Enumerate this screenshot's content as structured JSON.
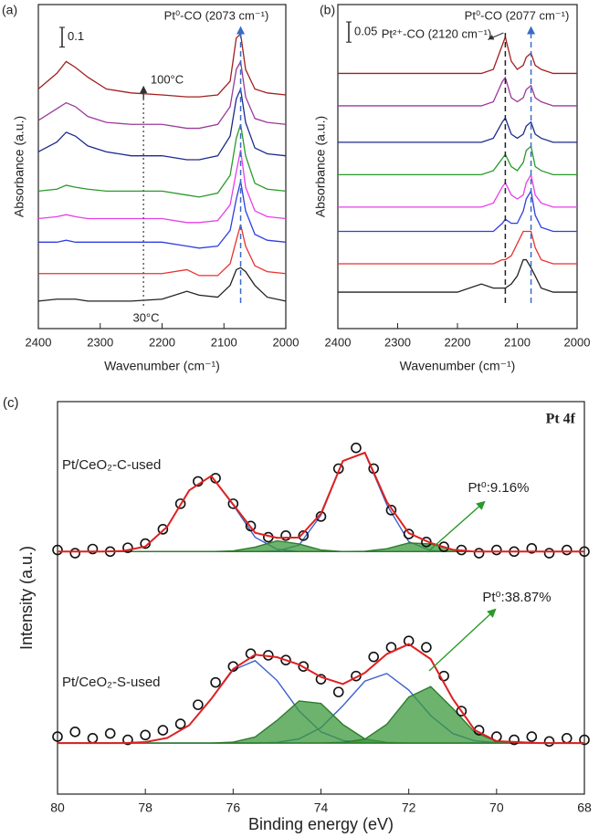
{
  "chart_data": [
    {
      "type": "line",
      "label": "(a)",
      "xlabel": "Wavenumber (cm⁻¹)",
      "ylabel": "Absorbance (a.u.)",
      "xlim": [
        2400,
        2000
      ],
      "xticks": [
        2400,
        2300,
        2200,
        2100,
        2000
      ],
      "ylim": [
        0,
        1.65
      ],
      "scale_bar": 0.1,
      "peak_lines": [
        {
          "x": 2073,
          "color": "#3a6bc4"
        }
      ],
      "dotted_line_x": 2230,
      "annotations": [
        {
          "text": "Pt⁰-CO (2073 cm⁻¹)",
          "color": "#3a6bc4"
        },
        {
          "text": "100°C",
          "color": "#222222"
        },
        {
          "text": "30°C",
          "color": "#222222"
        }
      ],
      "x": [
        2400,
        2370,
        2355,
        2340,
        2320,
        2290,
        2250,
        2200,
        2160,
        2140,
        2110,
        2090,
        2080,
        2073,
        2065,
        2050,
        2030,
        2000
      ],
      "series": [
        {
          "color": "#222222",
          "values": [
            0.14,
            0.15,
            0.15,
            0.15,
            0.14,
            0.14,
            0.14,
            0.15,
            0.19,
            0.17,
            0.16,
            0.22,
            0.3,
            0.31,
            0.29,
            0.22,
            0.16,
            0.14
          ]
        },
        {
          "color": "#e8322e",
          "values": [
            0.28,
            0.28,
            0.28,
            0.28,
            0.28,
            0.28,
            0.28,
            0.28,
            0.3,
            0.27,
            0.27,
            0.33,
            0.45,
            0.53,
            0.42,
            0.32,
            0.29,
            0.28
          ]
        },
        {
          "color": "#2f3fe0",
          "values": [
            0.44,
            0.44,
            0.45,
            0.44,
            0.44,
            0.44,
            0.44,
            0.44,
            0.42,
            0.41,
            0.42,
            0.5,
            0.66,
            0.75,
            0.6,
            0.48,
            0.45,
            0.44
          ]
        },
        {
          "color": "#e83ee8",
          "values": [
            0.56,
            0.57,
            0.58,
            0.57,
            0.56,
            0.56,
            0.56,
            0.56,
            0.54,
            0.54,
            0.55,
            0.63,
            0.8,
            0.91,
            0.72,
            0.6,
            0.57,
            0.56
          ]
        },
        {
          "color": "#2a9a2a",
          "values": [
            0.7,
            0.71,
            0.73,
            0.72,
            0.71,
            0.7,
            0.7,
            0.7,
            0.68,
            0.67,
            0.69,
            0.78,
            0.97,
            1.04,
            0.88,
            0.74,
            0.71,
            0.7
          ]
        },
        {
          "color": "#1d2a8c",
          "values": [
            0.9,
            0.95,
            1.0,
            0.98,
            0.93,
            0.9,
            0.88,
            0.88,
            0.86,
            0.86,
            0.88,
            0.98,
            1.17,
            1.22,
            1.05,
            0.92,
            0.89,
            0.88
          ]
        },
        {
          "color": "#9a3a9a",
          "values": [
            1.06,
            1.12,
            1.15,
            1.13,
            1.08,
            1.05,
            1.04,
            1.04,
            1.02,
            1.02,
            1.04,
            1.13,
            1.32,
            1.36,
            1.18,
            1.07,
            1.05,
            1.04
          ]
        },
        {
          "color": "#a02020",
          "values": [
            1.22,
            1.3,
            1.36,
            1.33,
            1.28,
            1.22,
            1.2,
            1.19,
            1.18,
            1.18,
            1.19,
            1.26,
            1.48,
            1.5,
            1.32,
            1.22,
            1.2,
            1.19
          ]
        }
      ]
    },
    {
      "type": "line",
      "label": "(b)",
      "xlabel": "Wavenumber (cm⁻¹)",
      "ylabel": "Absorbance (a.u.)",
      "xlim": [
        2400,
        2000
      ],
      "xticks": [
        2400,
        2300,
        2200,
        2100,
        2000
      ],
      "ylim": [
        0,
        0.8
      ],
      "scale_bar": 0.05,
      "peak_lines": [
        {
          "x": 2120,
          "color": "#222222"
        },
        {
          "x": 2077,
          "color": "#3a6bc4"
        }
      ],
      "annotations": [
        {
          "text": "Pt⁰-CO (2077 cm⁻¹)",
          "color": "#3a6bc4"
        },
        {
          "text": "Pt²⁺-CO (2120 cm⁻¹)",
          "color": "#222222"
        }
      ],
      "x": [
        2400,
        2300,
        2200,
        2160,
        2140,
        2125,
        2120,
        2110,
        2100,
        2090,
        2085,
        2077,
        2070,
        2060,
        2040,
        2000
      ],
      "series": [
        {
          "color": "#222222",
          "values": [
            0.09,
            0.09,
            0.09,
            0.11,
            0.1,
            0.1,
            0.1,
            0.11,
            0.13,
            0.17,
            0.17,
            0.15,
            0.13,
            0.1,
            0.09,
            0.09
          ]
        },
        {
          "color": "#e8322e",
          "values": [
            0.16,
            0.16,
            0.16,
            0.16,
            0.16,
            0.17,
            0.17,
            0.18,
            0.21,
            0.24,
            0.24,
            0.24,
            0.2,
            0.17,
            0.16,
            0.16
          ]
        },
        {
          "color": "#2f3fe0",
          "values": [
            0.24,
            0.24,
            0.24,
            0.24,
            0.24,
            0.26,
            0.27,
            0.26,
            0.26,
            0.29,
            0.32,
            0.34,
            0.28,
            0.25,
            0.24,
            0.24
          ]
        },
        {
          "color": "#e83ee8",
          "values": [
            0.3,
            0.3,
            0.3,
            0.3,
            0.31,
            0.35,
            0.36,
            0.33,
            0.32,
            0.33,
            0.36,
            0.38,
            0.33,
            0.31,
            0.3,
            0.3
          ]
        },
        {
          "color": "#2a9a2a",
          "values": [
            0.38,
            0.38,
            0.38,
            0.38,
            0.39,
            0.42,
            0.43,
            0.4,
            0.39,
            0.41,
            0.44,
            0.45,
            0.4,
            0.39,
            0.38,
            0.38
          ]
        },
        {
          "color": "#1d2a8c",
          "values": [
            0.46,
            0.46,
            0.46,
            0.46,
            0.47,
            0.51,
            0.52,
            0.48,
            0.47,
            0.48,
            0.5,
            0.51,
            0.48,
            0.47,
            0.46,
            0.46
          ]
        },
        {
          "color": "#9a3a9a",
          "values": [
            0.55,
            0.55,
            0.55,
            0.55,
            0.56,
            0.61,
            0.62,
            0.57,
            0.56,
            0.57,
            0.59,
            0.6,
            0.57,
            0.56,
            0.55,
            0.55
          ]
        },
        {
          "color": "#a02020",
          "values": [
            0.63,
            0.63,
            0.63,
            0.63,
            0.64,
            0.7,
            0.72,
            0.66,
            0.64,
            0.65,
            0.67,
            0.68,
            0.65,
            0.64,
            0.63,
            0.63
          ]
        }
      ]
    },
    {
      "type": "scatter",
      "label": "(c)",
      "title": "Pt 4f",
      "xlabel": "Binding energy (eV)",
      "ylabel": "Intensity (a.u.)",
      "xlim": [
        80,
        68
      ],
      "xticks": [
        80,
        78,
        76,
        74,
        72,
        70,
        68
      ],
      "ylim": [
        -1.6,
        10.7
      ],
      "x": [
        80,
        79.5,
        79,
        78.5,
        78,
        77.5,
        77,
        76.5,
        76,
        75.5,
        75,
        74.5,
        74,
        73.5,
        73,
        72.5,
        72,
        71.5,
        71,
        70.5,
        70,
        69,
        68
      ],
      "points_x": [
        80,
        79.6,
        79.2,
        78.8,
        78.4,
        78,
        77.6,
        77.2,
        76.8,
        76.4,
        76,
        75.6,
        75.2,
        74.8,
        74.4,
        74,
        73.6,
        73.2,
        72.8,
        72.4,
        72,
        71.6,
        71.2,
        70.8,
        70.4,
        70,
        69.6,
        69.2,
        68.8,
        68.4,
        68
      ],
      "fit_color": "#e02020",
      "point_color": "#111111",
      "samples": [
        {
          "name": "Pt/CeO₂-C-used",
          "annotation": "Pt⁰:9.16%",
          "annotation_color": "#2a9a2a",
          "baseline": 6,
          "points": [
            6.05,
            5.95,
            6.08,
            6.0,
            6.12,
            6.25,
            6.7,
            7.5,
            8.2,
            8.3,
            7.5,
            6.8,
            6.45,
            6.5,
            6.5,
            7.1,
            8.6,
            9.25,
            8.6,
            7.3,
            6.55,
            6.3,
            6.15,
            6.05,
            5.95,
            6.05,
            6.0,
            6.1,
            5.95,
            6.05,
            6.0
          ],
          "fit": [
            6,
            6,
            6,
            6.02,
            6.16,
            6.78,
            7.92,
            8.37,
            7.48,
            6.59,
            6.43,
            6.44,
            7.19,
            8.84,
            9.1,
            7.56,
            6.58,
            6.27,
            6.06,
            6,
            6,
            6,
            6
          ],
          "components": [
            {
              "color": "#3a5fcd",
              "filled": false,
              "values": [
                6,
                6,
                6,
                6.02,
                6.16,
                6.78,
                7.92,
                8.37,
                7.46,
                6.45,
                6.07,
                6,
                6,
                6,
                6,
                6,
                6,
                6,
                6,
                6,
                6,
                6,
                6
              ]
            },
            {
              "color": "#3a5fcd",
              "filled": false,
              "values": [
                6,
                6,
                6,
                6,
                6,
                6,
                6,
                6,
                6,
                6,
                6.02,
                6.2,
                7.14,
                8.84,
                9.09,
                7.47,
                6.31,
                6.03,
                6,
                6,
                6,
                6,
                6
              ]
            },
            {
              "color": "#3c9a3c",
              "filled": true,
              "values": [
                6,
                6,
                6,
                6,
                6,
                6,
                6,
                6,
                6.02,
                6.14,
                6.34,
                6.24,
                6.05,
                6,
                6,
                6,
                6,
                6,
                6,
                6,
                6,
                6,
                6
              ]
            },
            {
              "color": "#3c9a3c",
              "filled": true,
              "values": [
                6,
                6,
                6,
                6,
                6,
                6,
                6,
                6,
                6,
                6,
                6,
                6,
                6,
                6,
                6.01,
                6.09,
                6.27,
                6.24,
                6.06,
                6,
                6,
                6,
                6
              ]
            }
          ]
        },
        {
          "name": "Pt/CeO₂-S-used",
          "annotation": "Pt⁰:38.87%",
          "annotation_color": "#2a9a2a",
          "baseline": 0,
          "points": [
            0.2,
            0.35,
            0.15,
            0.3,
            0.1,
            0.25,
            0.4,
            0.6,
            1.2,
            1.9,
            2.4,
            2.8,
            2.75,
            2.6,
            2.4,
            2.0,
            1.6,
            2.1,
            2.7,
            3.0,
            3.2,
            3.0,
            2.1,
            1.0,
            0.4,
            0.2,
            0.1,
            0.2,
            0.05,
            0.15,
            0.1
          ],
          "fit": [
            0,
            0,
            0,
            0,
            0.03,
            0.16,
            0.56,
            1.38,
            2.32,
            2.77,
            2.69,
            2.46,
            2.07,
            1.85,
            2.2,
            2.79,
            3.1,
            2.63,
            1.39,
            0.41,
            0.06,
            0,
            0
          ],
          "components": [
            {
              "color": "#3a5fcd",
              "filled": false,
              "values": [
                0,
                0,
                0,
                0,
                0.03,
                0.16,
                0.56,
                1.38,
                2.29,
                2.58,
                1.96,
                1.01,
                0.35,
                0.08,
                0.01,
                0,
                0,
                0,
                0,
                0,
                0,
                0,
                0
              ]
            },
            {
              "color": "#3a5fcd",
              "filled": false,
              "values": [
                0,
                0,
                0,
                0,
                0,
                0,
                0,
                0,
                0,
                0,
                0.02,
                0.13,
                0.48,
                1.17,
                1.94,
                2.18,
                1.66,
                0.86,
                0.3,
                0.07,
                0.01,
                0,
                0
              ]
            },
            {
              "color": "#3c9a3c",
              "filled": true,
              "values": [
                0,
                0,
                0,
                0,
                0,
                0,
                0,
                0,
                0.03,
                0.19,
                0.71,
                1.32,
                1.24,
                0.58,
                0.13,
                0.02,
                0,
                0,
                0,
                0,
                0,
                0,
                0
              ]
            },
            {
              "color": "#3c9a3c",
              "filled": true,
              "values": [
                0,
                0,
                0,
                0,
                0,
                0,
                0,
                0,
                0,
                0,
                0,
                0,
                0,
                0.02,
                0.12,
                0.59,
                1.44,
                1.77,
                1.09,
                0.34,
                0.05,
                0,
                0
              ]
            }
          ]
        }
      ]
    }
  ]
}
